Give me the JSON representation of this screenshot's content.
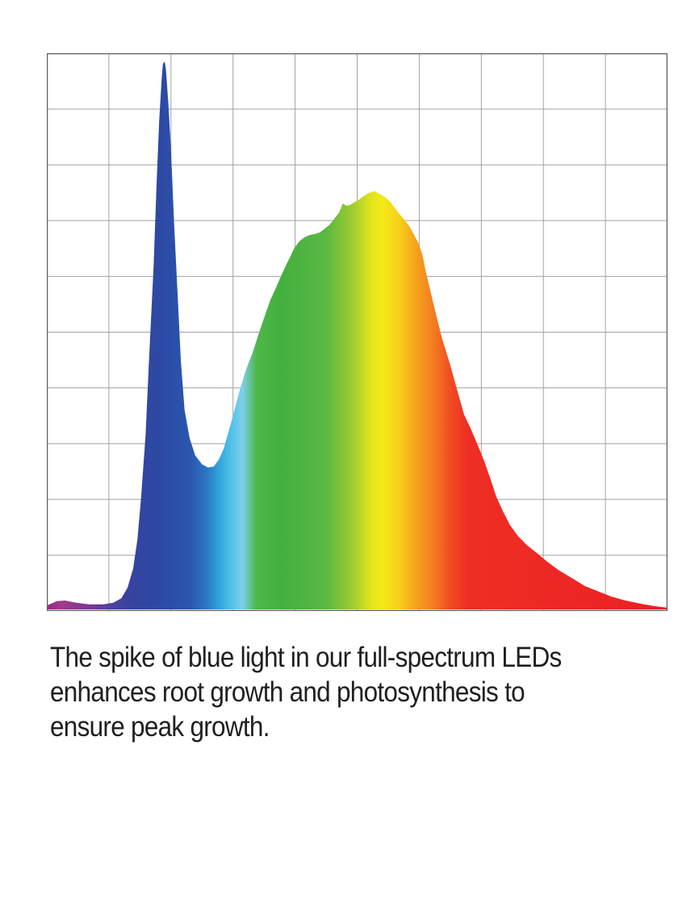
{
  "page": {
    "background": "#ffffff",
    "text_color": "#1f1f1f"
  },
  "caption": {
    "lines": [
      "The spike of blue light in our full-spectrum LEDs",
      "enhances root growth and photosynthesis to",
      "ensure peak growth."
    ],
    "text": "The spike of blue light in our full-spectrum LEDs enhances root growth and photosynthesis to ensure peak growth."
  },
  "chart_data": {
    "type": "area",
    "title": "",
    "xlabel": "",
    "ylabel": "",
    "x_axis": {
      "range_pct": [
        0,
        100
      ],
      "tick_labels": [],
      "gridlines": 10
    },
    "y_axis": {
      "range_pct": [
        0,
        100
      ],
      "tick_labels": [],
      "gridlines": 10
    },
    "legend": "none",
    "grid": {
      "columns": 10,
      "rows": 10,
      "line_color": "#a2a2a2",
      "border_color": "#5e5e5e",
      "background": "#ffffff"
    },
    "series_name": "LED spectral power (relative intensity, % of chart height vs. % across wavelength axis)",
    "points": [
      [
        0.0,
        0.7
      ],
      [
        1.6,
        1.5
      ],
      [
        2.9,
        1.6
      ],
      [
        4.8,
        1.2
      ],
      [
        6.8,
        0.9
      ],
      [
        9.1,
        0.9
      ],
      [
        10.7,
        1.2
      ],
      [
        12.0,
        2.0
      ],
      [
        13.0,
        3.9
      ],
      [
        13.9,
        7.3
      ],
      [
        14.6,
        12.6
      ],
      [
        15.2,
        20.3
      ],
      [
        15.9,
        31.2
      ],
      [
        16.5,
        45.7
      ],
      [
        17.2,
        61.7
      ],
      [
        17.7,
        76.9
      ],
      [
        18.1,
        87.8
      ],
      [
        18.5,
        95.4
      ],
      [
        18.7,
        98.1
      ],
      [
        19.0,
        98.5
      ],
      [
        19.2,
        97.1
      ],
      [
        19.6,
        90.7
      ],
      [
        20.0,
        82.7
      ],
      [
        20.5,
        69.7
      ],
      [
        21.1,
        55.9
      ],
      [
        21.6,
        44.6
      ],
      [
        22.2,
        35.8
      ],
      [
        23.0,
        30.8
      ],
      [
        23.9,
        27.7
      ],
      [
        25.0,
        26.1
      ],
      [
        26.0,
        25.5
      ],
      [
        26.9,
        25.7
      ],
      [
        27.7,
        26.9
      ],
      [
        28.5,
        28.9
      ],
      [
        29.4,
        32.4
      ],
      [
        30.3,
        36.1
      ],
      [
        31.2,
        39.9
      ],
      [
        32.1,
        43.1
      ],
      [
        33.2,
        46.3
      ],
      [
        34.2,
        49.8
      ],
      [
        35.1,
        52.7
      ],
      [
        36.0,
        55.6
      ],
      [
        36.9,
        57.8
      ],
      [
        37.8,
        60.1
      ],
      [
        38.6,
        62.0
      ],
      [
        39.3,
        63.6
      ],
      [
        39.9,
        65.0
      ],
      [
        40.7,
        66.2
      ],
      [
        41.5,
        66.9
      ],
      [
        42.3,
        67.3
      ],
      [
        43.2,
        67.5
      ],
      [
        44.0,
        67.8
      ],
      [
        44.7,
        68.4
      ],
      [
        45.5,
        69.1
      ],
      [
        46.3,
        70.2
      ],
      [
        47.1,
        71.4
      ],
      [
        47.7,
        73.0
      ],
      [
        48.2,
        72.6
      ],
      [
        48.8,
        72.7
      ],
      [
        49.4,
        73.1
      ],
      [
        50.2,
        73.6
      ],
      [
        51.0,
        74.3
      ],
      [
        51.9,
        74.9
      ],
      [
        52.8,
        75.2
      ],
      [
        53.6,
        74.7
      ],
      [
        54.4,
        74.2
      ],
      [
        55.3,
        73.3
      ],
      [
        56.0,
        72.3
      ],
      [
        56.8,
        71.1
      ],
      [
        57.6,
        70.1
      ],
      [
        58.4,
        68.9
      ],
      [
        59.2,
        67.3
      ],
      [
        59.8,
        66.0
      ],
      [
        60.5,
        63.9
      ],
      [
        61.1,
        60.5
      ],
      [
        61.8,
        57.3
      ],
      [
        62.7,
        53.0
      ],
      [
        63.7,
        48.6
      ],
      [
        64.9,
        44.3
      ],
      [
        66.1,
        39.5
      ],
      [
        67.2,
        35.1
      ],
      [
        68.3,
        32.5
      ],
      [
        69.3,
        29.9
      ],
      [
        70.5,
        26.6
      ],
      [
        71.5,
        23.4
      ],
      [
        72.4,
        20.3
      ],
      [
        73.5,
        17.6
      ],
      [
        74.6,
        15.2
      ],
      [
        75.9,
        13.2
      ],
      [
        77.4,
        11.5
      ],
      [
        78.9,
        10.2
      ],
      [
        80.6,
        8.6
      ],
      [
        82.4,
        7.1
      ],
      [
        84.5,
        5.7
      ],
      [
        86.7,
        4.2
      ],
      [
        88.7,
        3.3
      ],
      [
        91.0,
        2.3
      ],
      [
        93.2,
        1.6
      ],
      [
        95.8,
        1.0
      ],
      [
        97.8,
        0.6
      ],
      [
        100.0,
        0.3
      ]
    ],
    "annotations": [
      "narrow blue spike peaking near 98.5% intensity at ~19% across the axis",
      "valley down to ~25.5% intensity at ~26% across",
      "broad hump peaking near 75% intensity at ~53% across",
      "long red tail decaying to baseline at the right edge"
    ],
    "fill_gradient": {
      "direction": "horizontal",
      "stops": [
        {
          "offset": 0.0,
          "color": "#8e2a84"
        },
        {
          "offset": 2.2,
          "color": "#a13a8c"
        },
        {
          "offset": 6.8,
          "color": "#7c3794"
        },
        {
          "offset": 10.0,
          "color": "#52409c"
        },
        {
          "offset": 13.3,
          "color": "#35439f"
        },
        {
          "offset": 18.5,
          "color": "#2c4aa4"
        },
        {
          "offset": 23.0,
          "color": "#2a56ae"
        },
        {
          "offset": 25.6,
          "color": "#2c74c2"
        },
        {
          "offset": 27.8,
          "color": "#31a5dc"
        },
        {
          "offset": 29.9,
          "color": "#55c3e9"
        },
        {
          "offset": 31.5,
          "color": "#7dd0ec"
        },
        {
          "offset": 33.8,
          "color": "#4eb748"
        },
        {
          "offset": 38.0,
          "color": "#43b03e"
        },
        {
          "offset": 45.0,
          "color": "#5ab942"
        },
        {
          "offset": 49.0,
          "color": "#9aca31"
        },
        {
          "offset": 52.3,
          "color": "#e3e51b"
        },
        {
          "offset": 54.2,
          "color": "#f4e917"
        },
        {
          "offset": 56.8,
          "color": "#f6cf19"
        },
        {
          "offset": 59.4,
          "color": "#f5a31d"
        },
        {
          "offset": 62.4,
          "color": "#f37b21"
        },
        {
          "offset": 65.0,
          "color": "#f04c23"
        },
        {
          "offset": 67.9,
          "color": "#ee2e24"
        },
        {
          "offset": 100.0,
          "color": "#ec2024"
        }
      ]
    }
  }
}
